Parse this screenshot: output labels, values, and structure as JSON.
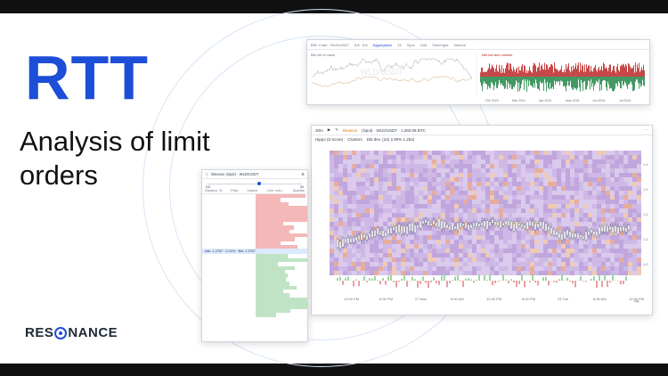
{
  "headline": {
    "brand": "RTT",
    "subtitle": "Analysis of limit orders"
  },
  "logo": {
    "text_left": "RES",
    "text_right": "NANCE"
  },
  "top_chart": {
    "toolbar": [
      "BRL Chart · WLD/USDT",
      "8.8 · 8.8",
      "Aggregation",
      "15",
      "Sync",
      "Grid",
      "Chart type",
      "Volume"
    ],
    "left_label": "Bid net in value",
    "right_label": "Net bid and volume",
    "watermark": "WLD/USDT",
    "x_ticks": [
      "Feb 2024",
      "Mar 2024",
      "Apr 2024",
      "May 2024",
      "Jun 2024",
      "Jul 2024"
    ]
  },
  "main_chart": {
    "interval": "30m",
    "exchange": "Binance",
    "title": "(Spot) · WLD/USDT · 1,260.08 BTC",
    "indicators": [
      "Hippo (Z-score)",
      "Clusters",
      "Dbl dev. (24) 2.90% 1.254)"
    ],
    "y_ticks": [
      "1.4",
      "1.3",
      "1.2",
      "1.1",
      "1.0"
    ],
    "x_ticks": [
      "12:00 PM",
      "6:00 PM",
      "27 Mon",
      "6:00 AM",
      "12:00 PM",
      "6:00 PM",
      "23 Tue",
      "6:00 AM",
      "12:00 PM"
    ],
    "axis_mode": "log"
  },
  "order_book": {
    "title": "Binance (Spot) · WLD/USDT",
    "slider_left": "5.8",
    "slider_right": "50",
    "columns": [
      "Distance, %",
      "Price",
      "Volume",
      "Cum. volu...",
      "Quantity",
      "Cum. qu..."
    ],
    "mid": "Ask: 1.2767 · 0.02% · Bid: 1.2767"
  },
  "colors": {
    "accent": "#1d4ed8",
    "ask": "#f4b8b8",
    "bid": "#bfe3c4",
    "heatmap_base": "#c9b3e3"
  }
}
